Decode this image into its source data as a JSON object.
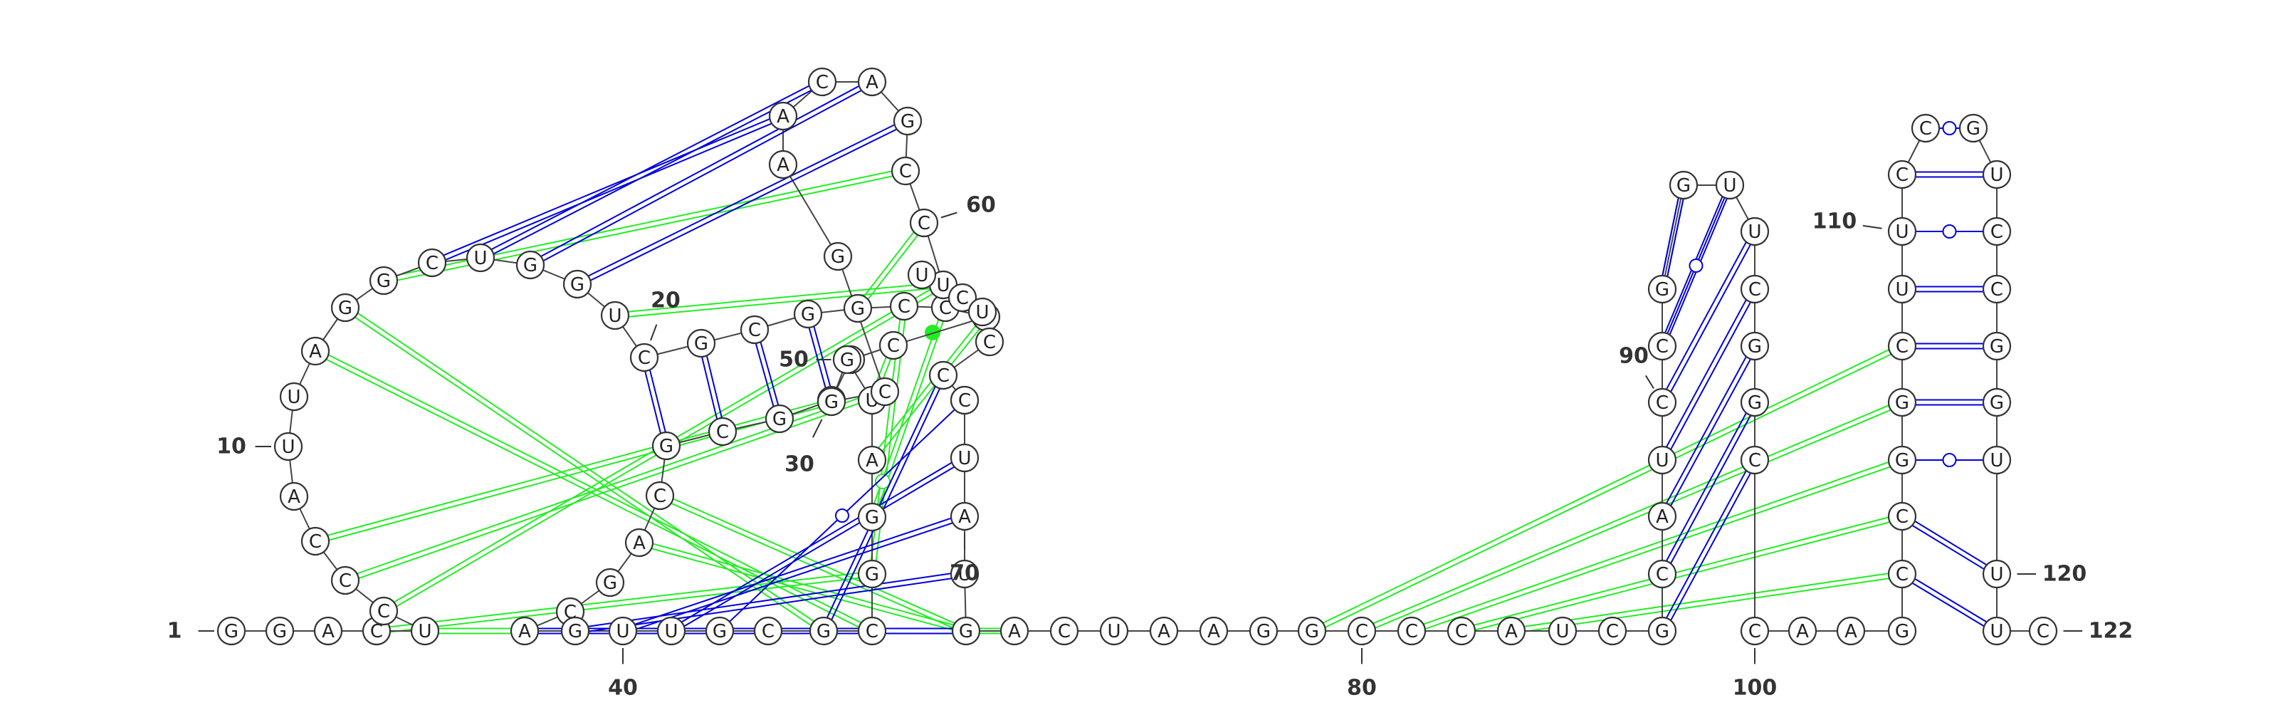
{
  "diagram": {
    "type": "rna-secondary-structure",
    "colors": {
      "canonical_pair": "#0000dd",
      "tertiary_interaction": "#22ee22",
      "backbone": "#444444",
      "nucleotide_outline": "#333333"
    },
    "nucleotides": [
      {
        "id": 1,
        "base": "G"
      },
      {
        "id": 2,
        "base": "G"
      },
      {
        "id": 3,
        "base": "A"
      },
      {
        "id": 4,
        "base": "C"
      },
      {
        "id": 5,
        "base": "U"
      },
      {
        "id": 6,
        "base": "C"
      },
      {
        "id": 7,
        "base": "C"
      },
      {
        "id": 8,
        "base": "C"
      },
      {
        "id": 9,
        "base": "A"
      },
      {
        "id": 10,
        "base": "U"
      },
      {
        "id": 11,
        "base": "U"
      },
      {
        "id": 12,
        "base": "A"
      },
      {
        "id": 13,
        "base": "G"
      },
      {
        "id": 14,
        "base": "G"
      },
      {
        "id": 15,
        "base": "C"
      },
      {
        "id": 16,
        "base": "U"
      },
      {
        "id": 17,
        "base": "G"
      },
      {
        "id": 18,
        "base": "G"
      },
      {
        "id": 19,
        "base": "U"
      },
      {
        "id": 20,
        "base": "C"
      },
      {
        "id": 21,
        "base": "G"
      },
      {
        "id": 22,
        "base": "C"
      },
      {
        "id": 23,
        "base": "G"
      },
      {
        "id": 24,
        "base": "G"
      },
      {
        "id": 25,
        "base": "C"
      },
      {
        "id": 26,
        "base": "C"
      },
      {
        "id": 27,
        "base": "G"
      },
      {
        "id": 28,
        "base": "C"
      },
      {
        "id": 29,
        "base": "G"
      },
      {
        "id": 30,
        "base": "G"
      },
      {
        "id": 31,
        "base": "G"
      },
      {
        "id": 32,
        "base": "C"
      },
      {
        "id": 33,
        "base": "G"
      },
      {
        "id": 34,
        "base": "C"
      },
      {
        "id": 35,
        "base": "A"
      },
      {
        "id": 36,
        "base": "G"
      },
      {
        "id": 37,
        "base": "C"
      },
      {
        "id": 38,
        "base": "A"
      },
      {
        "id": 39,
        "base": "G"
      },
      {
        "id": 40,
        "base": "U"
      },
      {
        "id": 41,
        "base": "U"
      },
      {
        "id": 42,
        "base": "G"
      },
      {
        "id": 43,
        "base": "C"
      },
      {
        "id": 44,
        "base": "G"
      },
      {
        "id": 45,
        "base": "C"
      },
      {
        "id": 46,
        "base": "G"
      },
      {
        "id": 47,
        "base": "G"
      },
      {
        "id": 48,
        "base": "A"
      },
      {
        "id": 49,
        "base": "U"
      },
      {
        "id": 50,
        "base": "G"
      },
      {
        "id": 51,
        "base": "G"
      },
      {
        "id": 52,
        "base": "C"
      },
      {
        "id": 53,
        "base": "G"
      },
      {
        "id": 54,
        "base": "A"
      },
      {
        "id": 55,
        "base": "A"
      },
      {
        "id": 56,
        "base": "C"
      },
      {
        "id": 57,
        "base": "A"
      },
      {
        "id": 58,
        "base": "G"
      },
      {
        "id": 59,
        "base": "C"
      },
      {
        "id": 60,
        "base": "C"
      },
      {
        "id": 61,
        "base": "U"
      },
      {
        "id": 62,
        "base": "U"
      },
      {
        "id": 63,
        "base": "C"
      },
      {
        "id": 64,
        "base": "U"
      },
      {
        "id": 65,
        "base": "C"
      },
      {
        "id": 66,
        "base": "C"
      },
      {
        "id": 67,
        "base": "U"
      },
      {
        "id": 68,
        "base": "C"
      },
      {
        "id": 69,
        "base": "U"
      },
      {
        "id": 70,
        "base": "A"
      },
      {
        "id": 71,
        "base": "U"
      },
      {
        "id": 72,
        "base": "G"
      },
      {
        "id": 73,
        "base": "A"
      },
      {
        "id": 74,
        "base": "C"
      },
      {
        "id": 75,
        "base": "U"
      },
      {
        "id": 76,
        "base": "A"
      },
      {
        "id": 77,
        "base": "A"
      },
      {
        "id": 78,
        "base": "G"
      },
      {
        "id": 79,
        "base": "G"
      },
      {
        "id": 80,
        "base": "C"
      },
      {
        "id": 81,
        "base": "C"
      },
      {
        "id": 82,
        "base": "C"
      },
      {
        "id": 83,
        "base": "A"
      },
      {
        "id": 84,
        "base": "U"
      },
      {
        "id": 85,
        "base": "C"
      },
      {
        "id": 86,
        "base": "G"
      },
      {
        "id": 87,
        "base": "C"
      },
      {
        "id": 88,
        "base": "A"
      },
      {
        "id": 89,
        "base": "U"
      },
      {
        "id": 90,
        "base": "C"
      },
      {
        "id": 91,
        "base": "C"
      },
      {
        "id": 92,
        "base": "G"
      },
      {
        "id": 93,
        "base": "G"
      },
      {
        "id": 94,
        "base": "U"
      },
      {
        "id": 95,
        "base": "U"
      },
      {
        "id": 96,
        "base": "C"
      },
      {
        "id": 97,
        "base": "G"
      },
      {
        "id": 98,
        "base": "G"
      },
      {
        "id": 99,
        "base": "C"
      },
      {
        "id": 100,
        "base": "C"
      },
      {
        "id": 101,
        "base": "A"
      },
      {
        "id": 102,
        "base": "A"
      },
      {
        "id": 103,
        "base": "G"
      },
      {
        "id": 104,
        "base": "C"
      },
      {
        "id": 105,
        "base": "C"
      },
      {
        "id": 106,
        "base": "G"
      },
      {
        "id": 107,
        "base": "G"
      },
      {
        "id": 108,
        "base": "C"
      },
      {
        "id": 109,
        "base": "U"
      },
      {
        "id": 110,
        "base": "U"
      },
      {
        "id": 111,
        "base": "C"
      },
      {
        "id": 112,
        "base": "C"
      },
      {
        "id": 113,
        "base": "G"
      },
      {
        "id": 114,
        "base": "U"
      },
      {
        "id": 115,
        "base": "C"
      },
      {
        "id": 116,
        "base": "C"
      },
      {
        "id": 117,
        "base": "G"
      },
      {
        "id": 118,
        "base": "G"
      },
      {
        "id": 119,
        "base": "U"
      },
      {
        "id": 120,
        "base": "U"
      },
      {
        "id": 121,
        "base": "U"
      },
      {
        "id": 122,
        "base": "C"
      }
    ],
    "position_labels": [
      {
        "nt": 1,
        "text": "1"
      },
      {
        "nt": 10,
        "text": "10"
      },
      {
        "nt": 20,
        "text": "20"
      },
      {
        "nt": 30,
        "text": "30"
      },
      {
        "nt": 40,
        "text": "40"
      },
      {
        "nt": 50,
        "text": "50"
      },
      {
        "nt": 60,
        "text": "60"
      },
      {
        "nt": 70,
        "text": "70"
      },
      {
        "nt": 80,
        "text": "80"
      },
      {
        "nt": 90,
        "text": "90"
      },
      {
        "nt": 100,
        "text": "100"
      },
      {
        "nt": 110,
        "text": "110"
      },
      {
        "nt": 120,
        "text": "120"
      },
      {
        "nt": 122,
        "text": "122"
      }
    ],
    "base_pairs": [
      {
        "i": 20,
        "j": 33,
        "type": "canonical"
      },
      {
        "i": 21,
        "j": 32,
        "type": "canonical"
      },
      {
        "i": 22,
        "j": 31,
        "type": "canonical"
      },
      {
        "i": 23,
        "j": 30,
        "type": "canonical"
      },
      {
        "i": 15,
        "j": 55,
        "type": "canonical"
      },
      {
        "i": 16,
        "j": 56,
        "type": "canonical"
      },
      {
        "i": 17,
        "j": 57,
        "type": "canonical"
      },
      {
        "i": 18,
        "j": 58,
        "type": "canonical"
      },
      {
        "i": 38,
        "j": 72,
        "type": "canonical"
      },
      {
        "i": 39,
        "j": 71,
        "type": "canonical"
      },
      {
        "i": 40,
        "j": 70,
        "type": "canonical"
      },
      {
        "i": 41,
        "j": 69,
        "type": "canonical"
      },
      {
        "i": 42,
        "j": 68,
        "type": "wobble"
      },
      {
        "i": 44,
        "j": 66,
        "type": "canonical"
      },
      {
        "i": 86,
        "j": 99,
        "type": "canonical"
      },
      {
        "i": 87,
        "j": 98,
        "type": "canonical"
      },
      {
        "i": 88,
        "j": 97,
        "type": "canonical"
      },
      {
        "i": 89,
        "j": 96,
        "type": "canonical"
      },
      {
        "i": 90,
        "j": 95,
        "type": "canonical"
      },
      {
        "i": 91,
        "j": 94,
        "type": "canonical"
      },
      {
        "i": 92,
        "j": 93,
        "type": "canonical"
      },
      {
        "i": 93,
        "j": 92,
        "type": "canonical"
      },
      {
        "i": 94,
        "j": 91,
        "type": "wobble"
      },
      {
        "i": 104,
        "j": 121,
        "type": "canonical"
      },
      {
        "i": 105,
        "j": 120,
        "type": "canonical"
      },
      {
        "i": 106,
        "j": 119,
        "type": "wobble"
      },
      {
        "i": 107,
        "j": 118,
        "type": "canonical"
      },
      {
        "i": 108,
        "j": 117,
        "type": "canonical"
      },
      {
        "i": 109,
        "j": 116,
        "type": "canonical"
      },
      {
        "i": 110,
        "j": 115,
        "type": "wobble"
      },
      {
        "i": 111,
        "j": 114,
        "type": "canonical"
      },
      {
        "i": 112,
        "j": 113,
        "type": "wobble"
      }
    ],
    "tertiary_interactions": [
      {
        "i": 4,
        "j": 46
      },
      {
        "i": 5,
        "j": 73
      },
      {
        "i": 6,
        "j": 61
      },
      {
        "i": 7,
        "j": 52
      },
      {
        "i": 8,
        "j": 51
      },
      {
        "i": 12,
        "j": 45
      },
      {
        "i": 13,
        "j": 44
      },
      {
        "i": 14,
        "j": 59
      },
      {
        "i": 19,
        "j": 61
      },
      {
        "i": 24,
        "j": 60
      },
      {
        "i": 25,
        "j": 46
      },
      {
        "i": 26,
        "j": 47
      },
      {
        "i": 27,
        "j": 48
      },
      {
        "i": 28,
        "j": 49
      },
      {
        "i": 29,
        "j": 50
      },
      {
        "i": 34,
        "j": 72
      },
      {
        "i": 35,
        "j": 72
      },
      {
        "i": 79,
        "j": 108
      },
      {
        "i": 80,
        "j": 107
      },
      {
        "i": 81,
        "j": 106
      },
      {
        "i": 82,
        "j": 105
      },
      {
        "i": 83,
        "j": 104
      }
    ]
  }
}
